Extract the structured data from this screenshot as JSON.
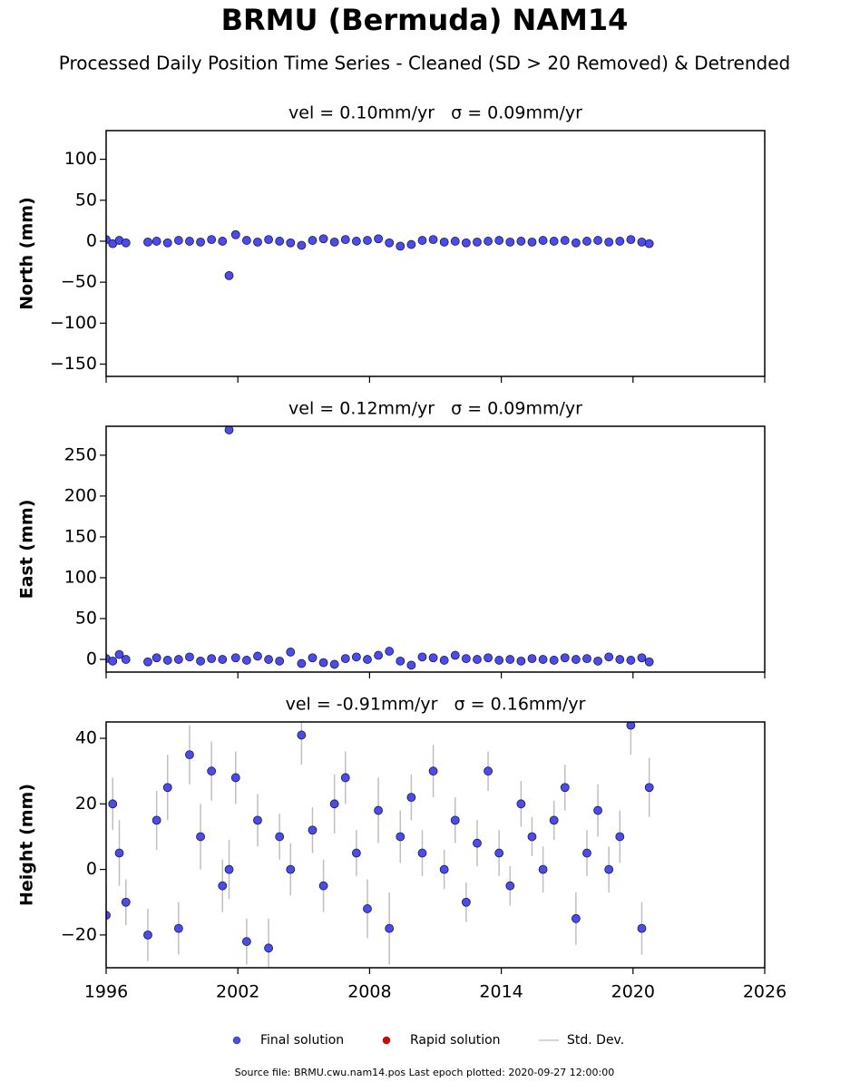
{
  "title": "BRMU (Bermuda) NAM14",
  "subtitle": "Processed Daily Position Time Series - Cleaned (SD > 20 Removed) & Detrended",
  "legend": [
    {
      "name": "Final solution",
      "color": "#4b4bf0"
    },
    {
      "name": "Rapid solution",
      "color": "#e00000"
    },
    {
      "name": "Std. Dev.",
      "color": "#c8c8c8"
    }
  ],
  "footer": "Source file: BRMU.cwu.nam14.pos  Last epoch plotted: 2020-09-27 12:00:00",
  "chart_data": [
    {
      "type": "scatter",
      "title": "vel = 0.10mm/yr   σ = 0.09mm/yr",
      "y_label": "North (mm)",
      "xlim": [
        1996,
        2026
      ],
      "xticks": [
        1996,
        2002,
        2008,
        2014,
        2020,
        2026
      ],
      "show_xtick_labels": false,
      "ylim": [
        -165,
        135
      ],
      "yticks": [
        {
          "value": -150,
          "label": "−150"
        },
        {
          "value": -100,
          "label": "−100"
        },
        {
          "value": -50,
          "label": "−50"
        },
        0,
        50,
        100
      ],
      "series": [
        {
          "name": "Final solution",
          "color": "#4b4bf0",
          "x": [
            1996.0,
            1996.3,
            1996.6,
            1996.9,
            1997.9,
            1998.3,
            1998.8,
            1999.3,
            1999.8,
            2000.3,
            2000.8,
            2001.3,
            2001.6,
            2001.9,
            2002.4,
            2002.9,
            2003.4,
            2003.9,
            2004.4,
            2004.9,
            2005.4,
            2005.9,
            2006.4,
            2006.9,
            2007.4,
            2007.9,
            2008.4,
            2008.9,
            2009.4,
            2009.9,
            2010.4,
            2010.9,
            2011.4,
            2011.9,
            2012.4,
            2012.9,
            2013.4,
            2013.9,
            2014.4,
            2014.9,
            2015.4,
            2015.9,
            2016.4,
            2016.9,
            2017.4,
            2017.9,
            2018.4,
            2018.9,
            2019.4,
            2019.9,
            2020.4,
            2020.74
          ],
          "values": [
            2,
            -3,
            1,
            -2,
            -1,
            0,
            -2,
            1,
            0,
            -1,
            2,
            0,
            -42,
            8,
            1,
            -1,
            2,
            0,
            -2,
            -5,
            1,
            3,
            -1,
            2,
            0,
            1,
            3,
            -2,
            -6,
            -4,
            1,
            2,
            -1,
            0,
            -2,
            -1,
            0,
            1,
            -1,
            0,
            -1,
            1,
            0,
            1,
            -2,
            0,
            1,
            -1,
            0,
            2,
            -1,
            -3
          ]
        }
      ]
    },
    {
      "type": "scatter",
      "title": "vel = 0.12mm/yr   σ = 0.09mm/yr",
      "y_label": "East (mm)",
      "xlim": [
        1996,
        2026
      ],
      "xticks": [
        1996,
        2002,
        2008,
        2014,
        2020,
        2026
      ],
      "show_xtick_labels": false,
      "ylim": [
        -15.5,
        285.4
      ],
      "yticks": [
        0,
        50,
        100,
        150,
        200,
        250
      ],
      "series": [
        {
          "name": "Final solution",
          "color": "#4b4bf0",
          "x": [
            1996.0,
            1996.3,
            1996.6,
            1996.9,
            1997.9,
            1998.3,
            1998.8,
            1999.3,
            1999.8,
            2000.3,
            2000.8,
            2001.3,
            2001.6,
            2001.9,
            2002.4,
            2002.9,
            2003.4,
            2003.9,
            2004.4,
            2004.9,
            2005.4,
            2005.9,
            2006.4,
            2006.9,
            2007.4,
            2007.9,
            2008.4,
            2008.9,
            2009.4,
            2009.9,
            2010.4,
            2010.9,
            2011.4,
            2011.9,
            2012.4,
            2012.9,
            2013.4,
            2013.9,
            2014.4,
            2014.9,
            2015.4,
            2015.9,
            2016.4,
            2016.9,
            2017.4,
            2017.9,
            2018.4,
            2018.9,
            2019.4,
            2019.9,
            2020.4,
            2020.74
          ],
          "values": [
            1,
            -2,
            6,
            0,
            -3,
            2,
            -1,
            0,
            3,
            -2,
            1,
            0,
            281,
            2,
            -1,
            4,
            0,
            -2,
            9,
            -5,
            2,
            -4,
            -6,
            1,
            3,
            0,
            5,
            10,
            -2,
            -7,
            3,
            2,
            -1,
            5,
            1,
            0,
            2,
            -1,
            0,
            -2,
            1,
            0,
            -1,
            2,
            0,
            1,
            -2,
            3,
            0,
            -1,
            2,
            -3
          ]
        }
      ]
    },
    {
      "type": "scatter",
      "title": "vel = -0.91mm/yr   σ = 0.16mm/yr",
      "y_label": "Height (mm)",
      "xlim": [
        1996,
        2026
      ],
      "xticks": [
        1996,
        2002,
        2008,
        2014,
        2020,
        2026
      ],
      "show_xtick_labels": true,
      "ylim": [
        -30,
        45
      ],
      "yticks": [
        {
          "value": -20,
          "label": "−20"
        },
        0,
        20,
        40
      ],
      "series": [
        {
          "name": "Final solution",
          "color": "#4b4bf0",
          "error_color": "#b0b0b0",
          "x": [
            1996.0,
            1996.3,
            1996.6,
            1996.9,
            1997.9,
            1998.3,
            1998.8,
            1999.3,
            1999.8,
            2000.3,
            2000.8,
            2001.3,
            2001.6,
            2001.9,
            2002.4,
            2002.9,
            2003.4,
            2003.9,
            2004.4,
            2004.9,
            2005.4,
            2005.9,
            2006.4,
            2006.9,
            2007.4,
            2007.9,
            2008.4,
            2008.9,
            2009.4,
            2009.9,
            2010.4,
            2010.9,
            2011.4,
            2011.9,
            2012.4,
            2012.9,
            2013.4,
            2013.9,
            2014.4,
            2014.9,
            2015.4,
            2015.9,
            2016.4,
            2016.9,
            2017.4,
            2017.9,
            2018.4,
            2018.9,
            2019.4,
            2019.9,
            2020.4,
            2020.74
          ],
          "values": [
            -14,
            20,
            5,
            -10,
            -20,
            15,
            25,
            -18,
            35,
            10,
            30,
            -5,
            0,
            28,
            -22,
            15,
            -24,
            10,
            0,
            41,
            12,
            -5,
            20,
            28,
            5,
            -12,
            18,
            -18,
            10,
            22,
            5,
            30,
            0,
            15,
            -10,
            8,
            30,
            5,
            -5,
            20,
            10,
            0,
            15,
            25,
            -15,
            5,
            18,
            0,
            10,
            44,
            -18,
            25
          ],
          "errors": [
            9,
            8,
            10,
            7,
            8,
            9,
            10,
            8,
            9,
            10,
            9,
            8,
            9,
            8,
            7,
            8,
            9,
            7,
            8,
            9,
            7,
            8,
            9,
            8,
            7,
            9,
            10,
            11,
            8,
            7,
            7,
            8,
            6,
            7,
            6,
            7,
            6,
            7,
            6,
            7,
            6,
            7,
            6,
            7,
            8,
            7,
            8,
            7,
            8,
            9,
            8,
            9
          ]
        }
      ]
    }
  ]
}
